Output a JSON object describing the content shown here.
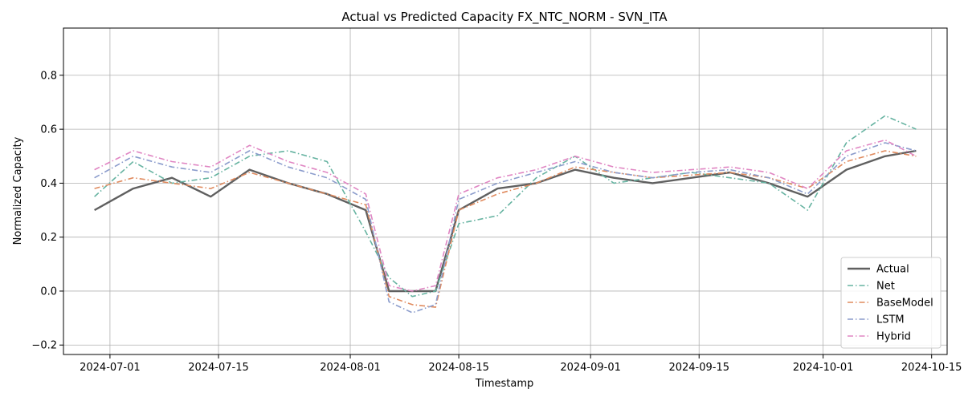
{
  "chart_data": {
    "type": "line",
    "title": "Actual vs Predicted Capacity FX_NTC_NORM - SVN_ITA",
    "xlabel": "Timestamp",
    "ylabel": "Normalized Capacity",
    "xlim": [
      "2024-06-25",
      "2024-10-17"
    ],
    "ylim": [
      -0.235,
      0.975
    ],
    "grid": true,
    "legend_position": "lower-right",
    "x_ticks": [
      "2024-07-01",
      "2024-07-15",
      "2024-08-01",
      "2024-08-15",
      "2024-09-01",
      "2024-09-15",
      "2024-10-01",
      "2024-10-15"
    ],
    "y_ticks": [
      -0.2,
      0.0,
      0.2,
      0.4,
      0.6,
      0.8
    ],
    "y_tick_labels": [
      "−0.2",
      "0.0",
      "0.2",
      "0.4",
      "0.6",
      "0.8"
    ],
    "x": [
      "2024-06-29",
      "2024-07-04",
      "2024-07-09",
      "2024-07-14",
      "2024-07-19",
      "2024-07-24",
      "2024-07-29",
      "2024-08-03",
      "2024-08-06",
      "2024-08-09",
      "2024-08-12",
      "2024-08-15",
      "2024-08-20",
      "2024-08-25",
      "2024-08-30",
      "2024-09-04",
      "2024-09-09",
      "2024-09-14",
      "2024-09-19",
      "2024-09-24",
      "2024-09-29",
      "2024-10-04",
      "2024-10-09",
      "2024-10-13"
    ],
    "series": [
      {
        "name": "Actual",
        "color": "#606060",
        "style": "solid",
        "values": [
          0.3,
          0.38,
          0.42,
          0.35,
          0.45,
          0.4,
          0.36,
          0.3,
          0.0,
          0.0,
          0.0,
          0.3,
          0.38,
          0.4,
          0.45,
          0.42,
          0.4,
          0.42,
          0.44,
          0.4,
          0.35,
          0.45,
          0.5,
          0.52
        ]
      },
      {
        "name": "Net",
        "color": "#66b3a1",
        "style": "dashdot",
        "values": [
          0.35,
          0.48,
          0.4,
          0.42,
          0.5,
          0.52,
          0.48,
          0.22,
          0.05,
          -0.02,
          0.0,
          0.25,
          0.28,
          0.42,
          0.5,
          0.4,
          0.42,
          0.44,
          0.42,
          0.4,
          0.3,
          0.55,
          0.65,
          0.6
        ]
      },
      {
        "name": "BaseModel",
        "color": "#e08b5f",
        "style": "dashdot",
        "values": [
          0.38,
          0.42,
          0.4,
          0.38,
          0.44,
          0.4,
          0.36,
          0.32,
          -0.02,
          -0.05,
          -0.06,
          0.3,
          0.36,
          0.4,
          0.46,
          0.44,
          0.42,
          0.43,
          0.44,
          0.42,
          0.38,
          0.48,
          0.52,
          0.5
        ]
      },
      {
        "name": "LSTM",
        "color": "#8b9ccc",
        "style": "dashdot",
        "values": [
          0.42,
          0.5,
          0.46,
          0.44,
          0.52,
          0.46,
          0.42,
          0.34,
          -0.04,
          -0.08,
          -0.05,
          0.34,
          0.4,
          0.44,
          0.48,
          0.44,
          0.42,
          0.44,
          0.45,
          0.42,
          0.36,
          0.5,
          0.55,
          0.52
        ]
      },
      {
        "name": "Hybrid",
        "color": "#e086c3",
        "style": "dashdot",
        "values": [
          0.45,
          0.52,
          0.48,
          0.46,
          0.54,
          0.48,
          0.44,
          0.36,
          0.02,
          0.0,
          0.02,
          0.36,
          0.42,
          0.45,
          0.5,
          0.46,
          0.44,
          0.45,
          0.46,
          0.44,
          0.38,
          0.52,
          0.56,
          0.5
        ]
      }
    ]
  }
}
